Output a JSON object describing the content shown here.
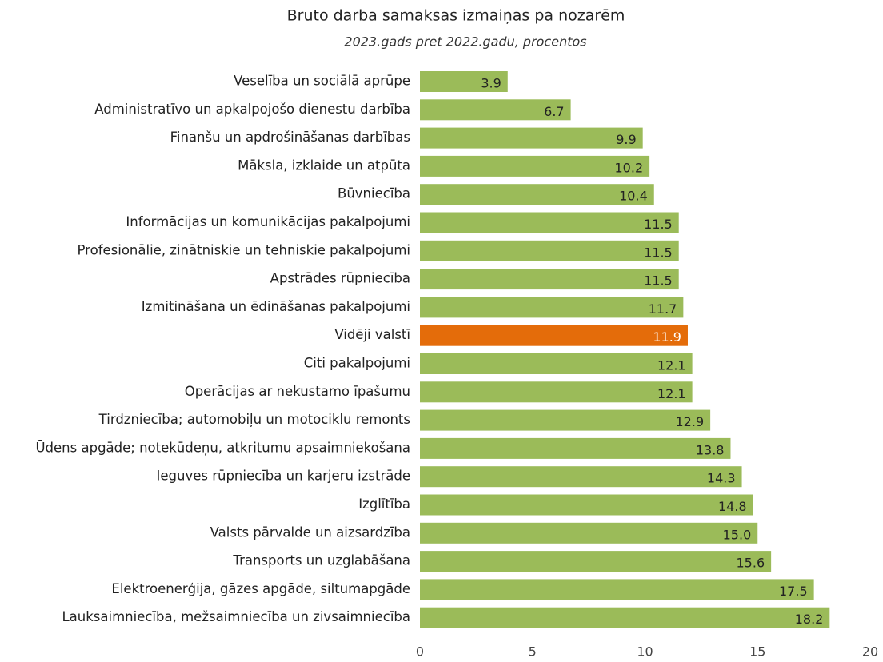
{
  "chart_data": {
    "type": "barh",
    "title": "Bruto darba samaksas izmaiņas pa nozarēm",
    "subtitle": "2023.gads pret 2022.gadu, procentos",
    "categories": [
      "Veselība un sociālā aprūpe",
      "Administratīvo un apkalpojošo dienestu darbība",
      "Finanšu un apdrošināšanas darbības",
      "Māksla, izklaide un atpūta",
      "Būvniecība",
      "Informācijas un komunikācijas pakalpojumi",
      "Profesionālie, zinātniskie un tehniskie pakalpojumi",
      "Apstrādes rūpniecība",
      "Izmitināšana un ēdināšanas pakalpojumi",
      "Vidēji valstī",
      "Citi pakalpojumi",
      "Operācijas ar nekustamo īpašumu",
      "Tirdzniecība; automobiļu un motociklu remonts",
      "Ūdens apgāde; notekūdeņu, atkritumu apsaimniekošana",
      "Ieguves rūpniecība un karjeru izstrāde",
      "Izglītība",
      "Valsts pārvalde un aizsardzība",
      "Transports un uzglabāšana",
      "Elektroenerģija, gāzes apgāde, siltumapgāde",
      "Lauksaimniecība, mežsaimniecība un zivsaimniecība"
    ],
    "values": [
      3.9,
      6.7,
      9.9,
      10.2,
      10.4,
      11.5,
      11.5,
      11.5,
      11.7,
      11.9,
      12.1,
      12.1,
      12.9,
      13.8,
      14.3,
      14.8,
      15.0,
      15.6,
      17.5,
      18.2
    ],
    "value_labels": [
      "3.9",
      "6.7",
      "9.9",
      "10.2",
      "10.4",
      "11.5",
      "11.5",
      "11.5",
      "11.7",
      "11.9",
      "12.1",
      "12.1",
      "12.9",
      "13.8",
      "14.3",
      "14.8",
      "15.0",
      "15.6",
      "17.5",
      "18.2"
    ],
    "colors": [
      "#9bbb59",
      "#9bbb59",
      "#9bbb59",
      "#9bbb59",
      "#9bbb59",
      "#9bbb59",
      "#9bbb59",
      "#9bbb59",
      "#9bbb59",
      "#e46c0a",
      "#9bbb59",
      "#9bbb59",
      "#9bbb59",
      "#9bbb59",
      "#9bbb59",
      "#9bbb59",
      "#9bbb59",
      "#9bbb59",
      "#9bbb59",
      "#9bbb59"
    ],
    "xlim": [
      0,
      20
    ],
    "xticks": [
      0,
      5,
      10,
      15,
      20
    ],
    "grid": false
  }
}
